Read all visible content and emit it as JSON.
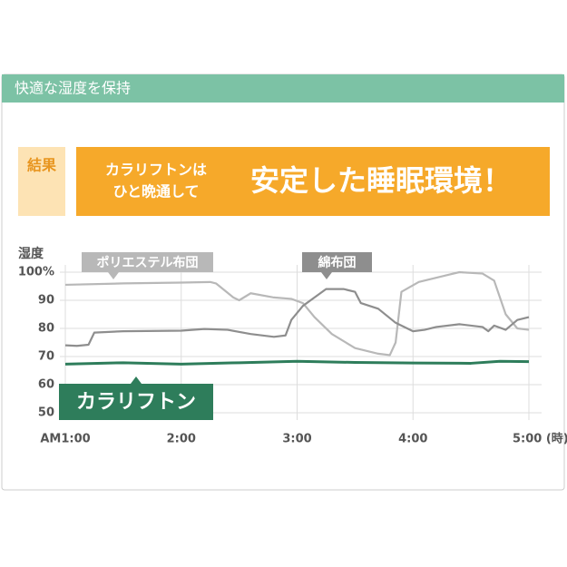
{
  "header": {
    "title": "快適な湿度を保持"
  },
  "result": {
    "label": "結果",
    "subtitle_lines": [
      "カラリフトンは",
      "ひと晩通して"
    ],
    "headline": "安定した睡眠環境！"
  },
  "chart_data": {
    "type": "line",
    "y_label": "湿度",
    "xlim": [
      1,
      5
    ],
    "xticks": [
      {
        "value": 1,
        "label": "AM1:00"
      },
      {
        "value": 2,
        "label": "2:00"
      },
      {
        "value": 3,
        "label": "3:00"
      },
      {
        "value": 4,
        "label": "4:00"
      },
      {
        "value": 5,
        "label": "5:00 (時)"
      }
    ],
    "ylim": [
      50,
      100
    ],
    "yticks": [
      {
        "value": 100,
        "label": "100%"
      },
      90,
      80,
      70,
      60,
      50
    ],
    "grid": true,
    "series": [
      {
        "name": "ポリエステル布団",
        "color": "#b8b8b8",
        "x": [
          1.0,
          1.5,
          2.0,
          2.25,
          2.3,
          2.45,
          2.5,
          2.6,
          2.8,
          2.95,
          3.05,
          3.15,
          3.3,
          3.5,
          3.7,
          3.8,
          3.85,
          3.9,
          4.05,
          4.3,
          4.4,
          4.6,
          4.7,
          4.8,
          4.9,
          5.0
        ],
        "values": [
          95.5,
          96,
          96.3,
          96.5,
          96,
          91,
          90,
          92.5,
          91,
          90.5,
          89,
          84,
          78,
          73,
          71,
          70.5,
          75,
          93,
          96.5,
          99,
          100,
          99.5,
          97,
          85,
          80,
          79.5
        ]
      },
      {
        "name": "綿布団",
        "color": "#8e8e8e",
        "x": [
          1.0,
          1.1,
          1.2,
          1.25,
          1.5,
          2.0,
          2.2,
          2.4,
          2.6,
          2.8,
          2.9,
          2.95,
          3.05,
          3.15,
          3.25,
          3.4,
          3.5,
          3.55,
          3.7,
          3.85,
          4.0,
          4.1,
          4.2,
          4.4,
          4.6,
          4.65,
          4.7,
          4.8,
          4.9,
          5.0
        ],
        "values": [
          74,
          73.8,
          74.2,
          78.5,
          79,
          79.2,
          79.8,
          79.5,
          78,
          77,
          77.5,
          83,
          88,
          91,
          94,
          94,
          93,
          89,
          87,
          82,
          79,
          79.5,
          80.5,
          81.5,
          80.5,
          79,
          81,
          79.5,
          83,
          84
        ]
      },
      {
        "name": "カラリフトン",
        "color": "#2e7d5b",
        "x": [
          1.0,
          1.5,
          2.0,
          2.5,
          3.0,
          3.5,
          4.0,
          4.5,
          4.75,
          5.0
        ],
        "values": [
          67.3,
          67.8,
          67.3,
          67.8,
          68.3,
          67.9,
          67.7,
          67.6,
          68.3,
          68.2
        ]
      }
    ]
  }
}
